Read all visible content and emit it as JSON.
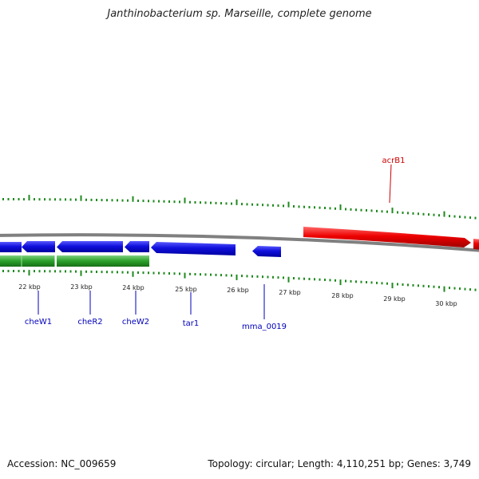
{
  "title": "Janthinobacterium sp. Marseille, complete genome",
  "footer": {
    "accession": "Accession: NC_009659",
    "summary": "Topology: circular; Length: 4,110,251 bp; Genes: 3,749"
  },
  "colors": {
    "forward_gene": "#ee0000",
    "reverse_gene": "#1010dd",
    "other_track": "#2aa02a",
    "backbone": "#808080",
    "ticks": "#1e8a1e",
    "forward_label": "#cc0000",
    "reverse_label": "#0000bb"
  },
  "kbp_labels": [
    "22 kbp",
    "23 kbp",
    "24 kbp",
    "25 kbp",
    "26 kbp",
    "27 kbp",
    "28 kbp",
    "29 kbp",
    "30 kbp"
  ],
  "genes": [
    {
      "name": "acrB1",
      "strand": "forward"
    },
    {
      "name": "cheW1",
      "strand": "reverse"
    },
    {
      "name": "cheR2",
      "strand": "reverse"
    },
    {
      "name": "cheW2",
      "strand": "reverse"
    },
    {
      "name": "tar1",
      "strand": "reverse"
    },
    {
      "name": "mma_0019",
      "strand": "reverse"
    }
  ]
}
